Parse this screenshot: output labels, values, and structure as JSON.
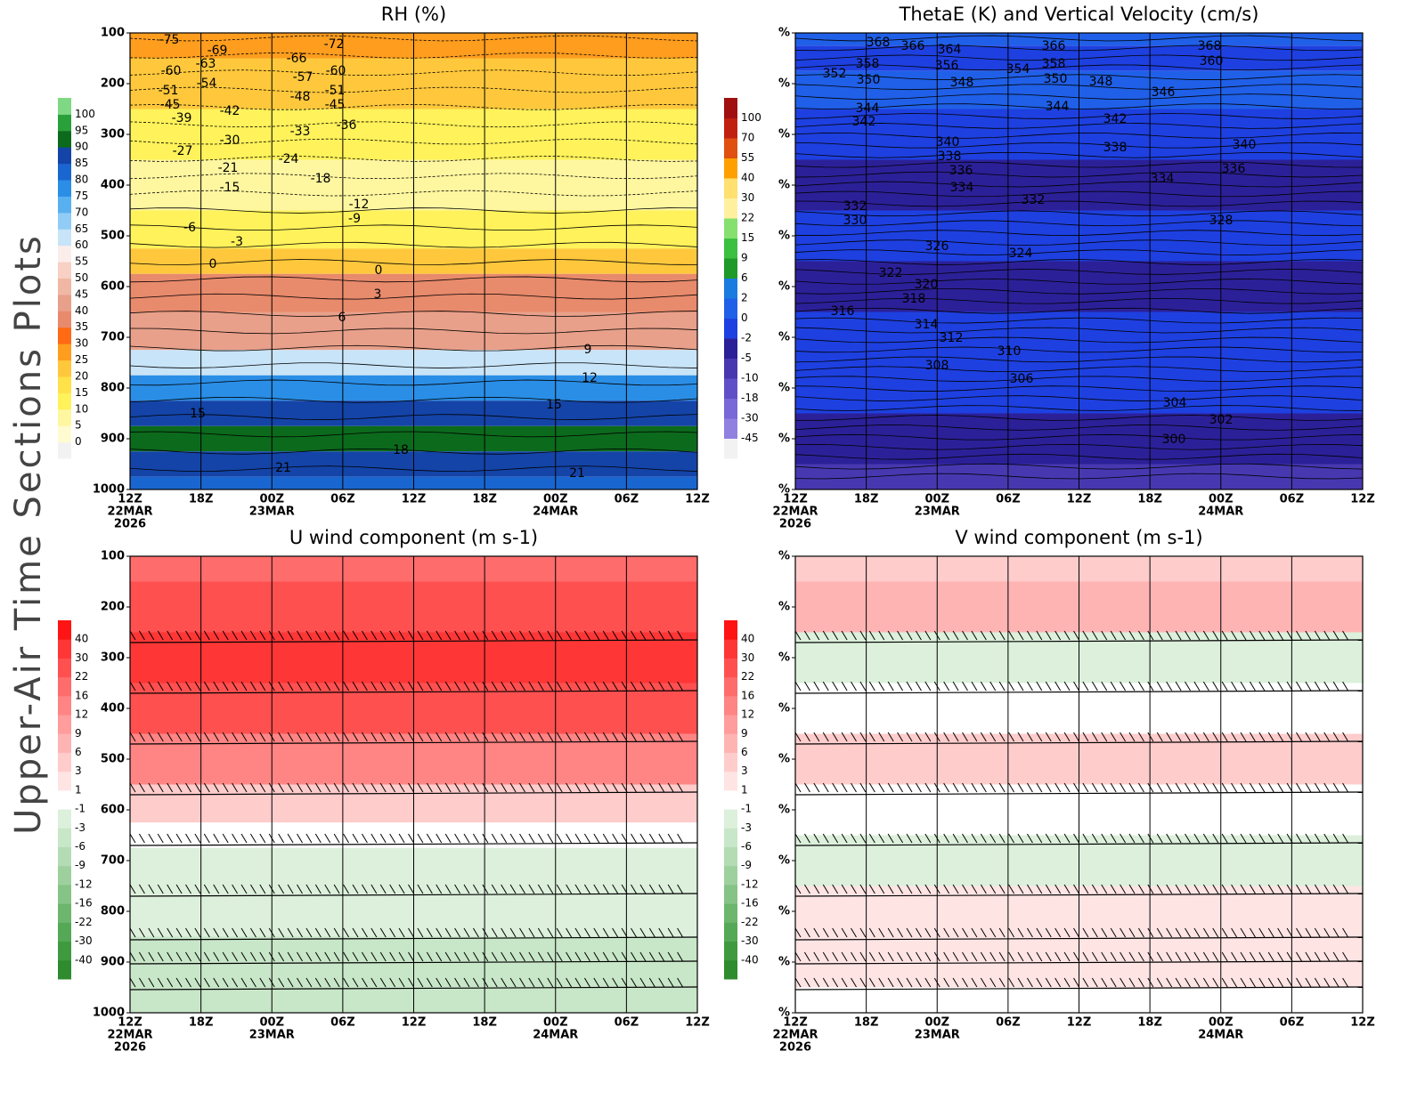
{
  "side_title": "Upper-Air Time Sections Plots",
  "chart_data": [
    {
      "type": "contour",
      "title": "RH (%)",
      "ylim": [
        1000,
        100
      ],
      "yticks": [
        100,
        200,
        300,
        400,
        500,
        600,
        700,
        800,
        900,
        1000
      ],
      "categories": [
        "12Z",
        "18Z",
        "00Z",
        "06Z",
        "12Z",
        "18Z",
        "00Z",
        "06Z",
        "12Z"
      ],
      "dates": [
        "22MAR",
        null,
        "23MAR",
        null,
        null,
        null,
        "24MAR",
        null,
        null
      ],
      "years": [
        "2026",
        null,
        null,
        null,
        null,
        null,
        null,
        null,
        null
      ],
      "grid": true,
      "colorbar": {
        "levels": [
          0,
          5,
          10,
          15,
          20,
          25,
          30,
          35,
          40,
          45,
          50,
          55,
          60,
          65,
          70,
          75,
          80,
          85,
          90,
          95,
          100
        ],
        "colors": [
          "#f2f2f2",
          "#fffbd0",
          "#fff7a0",
          "#fff25a",
          "#ffe14a",
          "#ffc83c",
          "#ff9d1e",
          "#ff6a14",
          "#e88a6c",
          "#e8a08a",
          "#f0b8a4",
          "#f8d0c4",
          "#fbeeea",
          "#c8e4f8",
          "#90ccf6",
          "#58b0f0",
          "#2a8ee6",
          "#1a66d0",
          "#1444a8",
          "#0c6a1c",
          "#2aa03a",
          "#7ed884"
        ]
      },
      "field": {
        "pressures": [
          100,
          200,
          300,
          400,
          500,
          550,
          600,
          700,
          750,
          800,
          850,
          900,
          950,
          1000
        ],
        "values": [
          27,
          22,
          14,
          9,
          12,
          22,
          36,
          42,
          62,
          76,
          86,
          92,
          86,
          80
        ]
      },
      "contour_labels": [
        -75,
        -69,
        -63,
        -60,
        -54,
        -51,
        -45,
        -39,
        -42,
        -66,
        -57,
        -48,
        -72,
        -60,
        -51,
        -45,
        -36,
        -33,
        -30,
        -27,
        -24,
        -21,
        -18,
        -15,
        -12,
        -9,
        -6,
        -3,
        0,
        0,
        3,
        6,
        9,
        12,
        15,
        15,
        18,
        21,
        21
      ]
    },
    {
      "type": "contour",
      "title": "ThetaE (K) and Vertical Velocity (cm/s)",
      "ylim": [
        1000,
        100
      ],
      "yticks": [
        {
          "value": 100,
          "label": "%"
        },
        {
          "value": 200,
          "label": "%"
        },
        {
          "value": 300,
          "label": "%"
        },
        {
          "value": 400,
          "label": "%"
        },
        {
          "value": 500,
          "label": "%"
        },
        {
          "value": 600,
          "label": "%"
        },
        {
          "value": 700,
          "label": "%"
        },
        {
          "value": 800,
          "label": "%"
        },
        {
          "value": 900,
          "label": "%"
        },
        {
          "value": 1000,
          "label": "%"
        }
      ],
      "categories": [
        "12Z",
        "18Z",
        "00Z",
        "06Z",
        "12Z",
        "18Z",
        "00Z",
        "06Z",
        "12Z"
      ],
      "dates": [
        "22MAR",
        null,
        "23MAR",
        null,
        null,
        null,
        "24MAR",
        null,
        null
      ],
      "years": [
        "2026",
        null,
        null,
        null,
        null,
        null,
        null,
        null,
        null
      ],
      "grid": true,
      "colorbar": {
        "levels": [
          -45,
          -30,
          -18,
          -10,
          -5,
          -2,
          0,
          2,
          6,
          9,
          15,
          22,
          30,
          40,
          55,
          70,
          100
        ],
        "colors": [
          "#f2f2f2",
          "#9080e0",
          "#7868d8",
          "#6050c8",
          "#4838b0",
          "#2c2098",
          "#1e40e0",
          "#2060e8",
          "#1a7ce0",
          "#1e9a28",
          "#3cc040",
          "#86e070",
          "#fff0a0",
          "#ffe070",
          "#ffa000",
          "#e05010",
          "#c02010",
          "#a01010"
        ]
      },
      "field": {
        "pressures": [
          100,
          150,
          200,
          300,
          400,
          500,
          600,
          700,
          800,
          900,
          1000
        ],
        "values": [
          1,
          -1,
          1,
          -1,
          -3,
          -1,
          -3,
          -1,
          -1,
          -3,
          -6
        ]
      },
      "contour_labels": [
        368,
        366,
        364,
        366,
        368,
        358,
        356,
        358,
        360,
        352,
        350,
        354,
        350,
        348,
        348,
        346,
        344,
        342,
        344,
        342,
        340,
        338,
        338,
        340,
        336,
        334,
        336,
        334,
        332,
        332,
        330,
        328,
        326,
        324,
        322,
        320,
        318,
        316,
        314,
        312,
        310,
        308,
        306,
        304,
        302,
        300
      ]
    },
    {
      "type": "contour",
      "title": "U wind component (m s-1)",
      "ylim": [
        1000,
        100
      ],
      "yticks": [
        100,
        200,
        300,
        400,
        500,
        600,
        700,
        800,
        900,
        1000
      ],
      "categories": [
        "12Z",
        "18Z",
        "00Z",
        "06Z",
        "12Z",
        "18Z",
        "00Z",
        "06Z",
        "12Z"
      ],
      "dates": [
        "22MAR",
        null,
        "23MAR",
        null,
        null,
        null,
        "24MAR",
        null,
        null
      ],
      "years": [
        "2026",
        null,
        null,
        null,
        null,
        null,
        null,
        null,
        null
      ],
      "grid": true,
      "colorbar": {
        "levels": [
          -40,
          -30,
          -22,
          -16,
          -12,
          -9,
          -6,
          -3,
          -1,
          1,
          3,
          6,
          9,
          12,
          16,
          22,
          30,
          40
        ],
        "colors": [
          "#2e8b2e",
          "#3f9a3f",
          "#55a855",
          "#6db66d",
          "#86c386",
          "#9ed09e",
          "#b4dcb4",
          "#c8e6c8",
          "#dcf0dc",
          "#ffffff",
          "#ffe4e4",
          "#ffcccc",
          "#ffb4b4",
          "#ff9c9c",
          "#ff8484",
          "#ff6c6c",
          "#ff5050",
          "#ff3636",
          "#ff1414"
        ]
      },
      "field": {
        "pressures": [
          100,
          200,
          300,
          400,
          500,
          600,
          650,
          700,
          800,
          900,
          1000
        ],
        "values": [
          20,
          24,
          32,
          26,
          14,
          5,
          0,
          -2,
          -2,
          -4,
          -5
        ]
      }
    },
    {
      "type": "contour",
      "title": "V wind component (m s-1)",
      "ylim": [
        1000,
        100
      ],
      "yticks": [
        {
          "value": 100,
          "label": "%"
        },
        {
          "value": 200,
          "label": "%"
        },
        {
          "value": 300,
          "label": "%"
        },
        {
          "value": 400,
          "label": "%"
        },
        {
          "value": 500,
          "label": "%"
        },
        {
          "value": 600,
          "label": "%"
        },
        {
          "value": 700,
          "label": "%"
        },
        {
          "value": 800,
          "label": "%"
        },
        {
          "value": 900,
          "label": "%"
        },
        {
          "value": 1000,
          "label": "%"
        }
      ],
      "categories": [
        "12Z",
        "18Z",
        "00Z",
        "06Z",
        "12Z",
        "18Z",
        "00Z",
        "06Z",
        "12Z"
      ],
      "dates": [
        "22MAR",
        null,
        "23MAR",
        null,
        null,
        null,
        "24MAR",
        null,
        null
      ],
      "years": [
        "2026",
        null,
        null,
        null,
        null,
        null,
        null,
        null,
        null
      ],
      "grid": true,
      "colorbar": {
        "levels": [
          -40,
          -30,
          -22,
          -16,
          -12,
          -9,
          -6,
          -3,
          -1,
          1,
          3,
          6,
          9,
          12,
          16,
          22,
          30,
          40
        ],
        "colors": [
          "#2e8b2e",
          "#3f9a3f",
          "#55a855",
          "#6db66d",
          "#86c386",
          "#9ed09e",
          "#b4dcb4",
          "#c8e6c8",
          "#dcf0dc",
          "#ffffff",
          "#ffe4e4",
          "#ffcccc",
          "#ffb4b4",
          "#ff9c9c",
          "#ff8484",
          "#ff6c6c",
          "#ff5050",
          "#ff3636",
          "#ff1414"
        ]
      },
      "field": {
        "pressures": [
          100,
          200,
          300,
          400,
          500,
          600,
          700,
          800,
          900,
          1000
        ],
        "values": [
          5,
          8,
          -2,
          0,
          3,
          0,
          -2,
          2,
          2,
          0
        ]
      }
    }
  ]
}
